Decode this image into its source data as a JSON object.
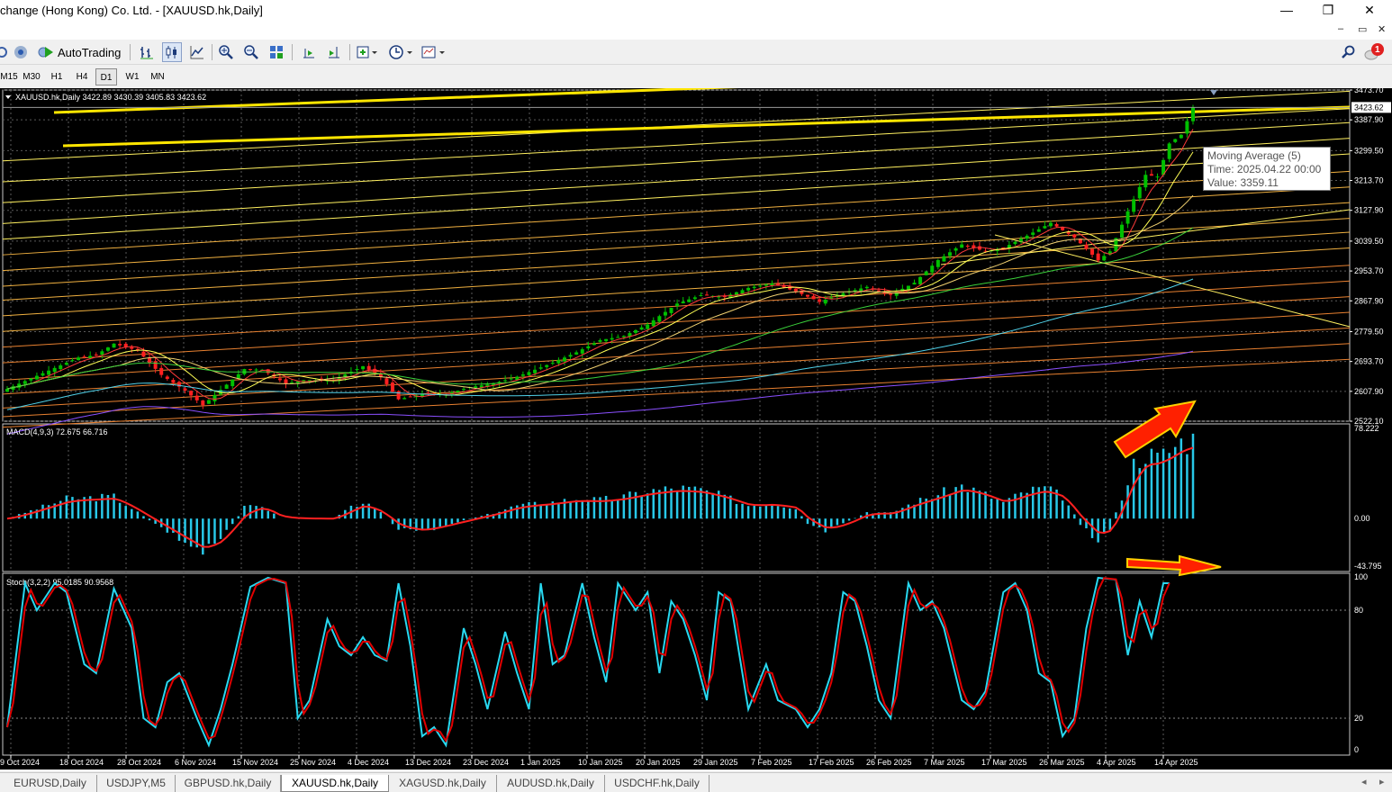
{
  "window": {
    "title": "change (Hong Kong) Co. Ltd. - [XAUUSD.hk,Daily]",
    "minimize": "—",
    "restore": "❐",
    "close": "✕"
  },
  "mdi": {
    "minimize": "–",
    "restore": "▭",
    "close": "✕",
    "alert_count": "1"
  },
  "toolbar": {
    "autotrading": "AutoTrading",
    "icons": [
      "bar-chart-icon",
      "candlestick-icon",
      "line-chart-icon",
      "zoom-in-icon",
      "zoom-out-icon",
      "tile-windows-icon",
      "chart-shift-icon",
      "autoscroll-icon",
      "indicators-icon",
      "periods-icon",
      "templates-icon",
      "search-icon"
    ]
  },
  "timeframes": [
    "M15",
    "M30",
    "H1",
    "H4",
    "D1",
    "W1",
    "MN"
  ],
  "active_timeframe": "D1",
  "chart_header": "XAUUSD.hk,Daily  3422.89 3430.39 3405.83 3423.62",
  "tooltip": {
    "line1": "Moving Average (5)",
    "line2": "Time: 2025.04.22 00:00",
    "line3": "Value: 3359.11"
  },
  "tabs": [
    "EURUSD,Daily",
    "USDJPY,M5",
    "GBPUSD.hk,Daily",
    "XAUUSD.hk,Daily",
    "XAGUSD.hk,Daily",
    "AUDUSD.hk,Daily",
    "USDCHF.hk,Daily"
  ],
  "active_tab": "XAUUSD.hk,Daily",
  "colors": {
    "bull": "#00c000",
    "bear": "#ff2020",
    "macd_hist": "#28c8e8",
    "signal": "#ff2020",
    "stoch_main": "#28d8f0",
    "stoch_signal": "#e00000",
    "trendline": "#ffe600",
    "arrow": "#ff2000"
  },
  "chart_data": [
    {
      "type": "candlestick",
      "symbol": "XAUUSD.hk",
      "timeframe": "Daily",
      "price_axis": [
        "3473.70",
        "3387.90",
        "3299.50",
        "3213.70",
        "3127.90",
        "3039.50",
        "2953.70",
        "2867.90",
        "2779.50",
        "2693.70",
        "2607.90",
        "2522.10"
      ],
      "current_price": "3423.62",
      "ylim": [
        2522.1,
        3473.7
      ],
      "x_labels": [
        "9 Oct 2024",
        "18 Oct 2024",
        "28 Oct 2024",
        "6 Nov 2024",
        "15 Nov 2024",
        "25 Nov 2024",
        "4 Dec 2024",
        "13 Dec 2024",
        "23 Dec 2024",
        "1 Jan 2025",
        "10 Jan 2025",
        "20 Jan 2025",
        "29 Jan 2025",
        "7 Feb 2025",
        "17 Feb 2025",
        "26 Feb 2025",
        "7 Mar 2025",
        "17 Mar 2025",
        "26 Mar 2025",
        "4 Apr 2025",
        "14 Apr 2025"
      ],
      "close_anchors": [
        [
          0,
          2615
        ],
        [
          6,
          2660
        ],
        [
          12,
          2705
        ],
        [
          15,
          2712
        ],
        [
          18,
          2745
        ],
        [
          22,
          2725
        ],
        [
          26,
          2655
        ],
        [
          30,
          2610
        ],
        [
          33,
          2568
        ],
        [
          36,
          2612
        ],
        [
          40,
          2672
        ],
        [
          43,
          2670
        ],
        [
          47,
          2630
        ],
        [
          50,
          2640
        ],
        [
          55,
          2641
        ],
        [
          60,
          2680
        ],
        [
          63,
          2650
        ],
        [
          66,
          2585
        ],
        [
          70,
          2600
        ],
        [
          74,
          2600
        ],
        [
          78,
          2620
        ],
        [
          82,
          2630
        ],
        [
          86,
          2650
        ],
        [
          92,
          2690
        ],
        [
          96,
          2720
        ],
        [
          100,
          2755
        ],
        [
          104,
          2767
        ],
        [
          108,
          2800
        ],
        [
          113,
          2860
        ],
        [
          117,
          2884
        ],
        [
          121,
          2880
        ],
        [
          125,
          2905
        ],
        [
          129,
          2918
        ],
        [
          133,
          2895
        ],
        [
          137,
          2865
        ],
        [
          141,
          2890
        ],
        [
          145,
          2908
        ],
        [
          149,
          2885
        ],
        [
          153,
          2920
        ],
        [
          157,
          2985
        ],
        [
          161,
          3030
        ],
        [
          165,
          3010
        ],
        [
          168,
          3020
        ],
        [
          172,
          3055
        ],
        [
          176,
          3092
        ],
        [
          180,
          3050
        ],
        [
          184,
          2984
        ],
        [
          186,
          3010
        ],
        [
          189,
          3125
        ],
        [
          192,
          3230
        ],
        [
          194,
          3225
        ],
        [
          196,
          3320
        ],
        [
          198,
          3345
        ],
        [
          200,
          3423.62
        ]
      ],
      "moving_averages": [
        {
          "name": "Moving Average (5)",
          "period": 5,
          "color": "#ff3a3a"
        },
        {
          "period": 10,
          "color": "#ffff55"
        },
        {
          "period": 20,
          "color": "#f0d070"
        },
        {
          "period": 50,
          "color": "#3ad03a"
        },
        {
          "period": 100,
          "color": "#4fd0e8"
        },
        {
          "period": 200,
          "color": "#8a4fff"
        }
      ]
    },
    {
      "type": "bar",
      "name": "MACD(4,9,3)",
      "header": "MACD(4,9,3) 72.675 66.716",
      "axis": [
        "78.222",
        "0.00",
        "-43.795"
      ],
      "ylim": [
        -43.795,
        78.222
      ],
      "anchors": [
        [
          0,
          0
        ],
        [
          10,
          18
        ],
        [
          18,
          20
        ],
        [
          25,
          -5
        ],
        [
          30,
          -22
        ],
        [
          33,
          -32
        ],
        [
          36,
          -20
        ],
        [
          40,
          10
        ],
        [
          43,
          12
        ],
        [
          46,
          0
        ],
        [
          55,
          0
        ],
        [
          58,
          10
        ],
        [
          60,
          15
        ],
        [
          63,
          5
        ],
        [
          66,
          -10
        ],
        [
          70,
          -12
        ],
        [
          76,
          -3
        ],
        [
          82,
          5
        ],
        [
          86,
          12
        ],
        [
          92,
          15
        ],
        [
          96,
          18
        ],
        [
          100,
          17
        ],
        [
          104,
          20
        ],
        [
          108,
          25
        ],
        [
          113,
          28
        ],
        [
          117,
          26
        ],
        [
          121,
          20
        ],
        [
          125,
          12
        ],
        [
          129,
          14
        ],
        [
          133,
          10
        ],
        [
          135,
          -5
        ],
        [
          138,
          -12
        ],
        [
          141,
          -5
        ],
        [
          145,
          6
        ],
        [
          149,
          5
        ],
        [
          153,
          15
        ],
        [
          157,
          22
        ],
        [
          161,
          30
        ],
        [
          165,
          22
        ],
        [
          168,
          15
        ],
        [
          172,
          25
        ],
        [
          175,
          28
        ],
        [
          178,
          20
        ],
        [
          181,
          -5
        ],
        [
          184,
          -20
        ],
        [
          186,
          -10
        ],
        [
          188,
          20
        ],
        [
          190,
          50
        ],
        [
          192,
          60
        ],
        [
          194,
          55
        ],
        [
          196,
          62
        ],
        [
          198,
          70
        ],
        [
          200,
          72.675
        ]
      ]
    },
    {
      "type": "line",
      "name": "Stoch(3,2,2)",
      "header": "Stoch(3,2,2) 95.0185 90.9568",
      "axis": [
        "100",
        "80",
        "20",
        "0"
      ],
      "ylim": [
        0,
        100
      ],
      "anchors": [
        [
          0,
          15
        ],
        [
          3,
          95
        ],
        [
          5,
          80
        ],
        [
          8,
          95
        ],
        [
          10,
          90
        ],
        [
          13,
          50
        ],
        [
          15,
          45
        ],
        [
          18,
          92
        ],
        [
          21,
          70
        ],
        [
          23,
          20
        ],
        [
          25,
          15
        ],
        [
          27,
          40
        ],
        [
          29,
          45
        ],
        [
          32,
          20
        ],
        [
          34,
          5
        ],
        [
          36,
          25
        ],
        [
          38,
          50
        ],
        [
          41,
          93
        ],
        [
          44,
          98
        ],
        [
          47,
          95
        ],
        [
          49,
          20
        ],
        [
          51,
          30
        ],
        [
          54,
          75
        ],
        [
          56,
          60
        ],
        [
          58,
          55
        ],
        [
          60,
          65
        ],
        [
          62,
          55
        ],
        [
          64,
          52
        ],
        [
          66,
          95
        ],
        [
          68,
          60
        ],
        [
          70,
          10
        ],
        [
          72,
          15
        ],
        [
          74,
          5
        ],
        [
          77,
          70
        ],
        [
          79,
          50
        ],
        [
          81,
          25
        ],
        [
          84,
          68
        ],
        [
          86,
          45
        ],
        [
          88,
          25
        ],
        [
          90,
          95
        ],
        [
          92,
          50
        ],
        [
          94,
          55
        ],
        [
          97,
          95
        ],
        [
          99,
          65
        ],
        [
          101,
          40
        ],
        [
          103,
          95
        ],
        [
          106,
          80
        ],
        [
          108,
          90
        ],
        [
          110,
          45
        ],
        [
          112,
          85
        ],
        [
          114,
          75
        ],
        [
          116,
          55
        ],
        [
          118,
          30
        ],
        [
          120,
          90
        ],
        [
          122,
          85
        ],
        [
          125,
          25
        ],
        [
          128,
          50
        ],
        [
          130,
          30
        ],
        [
          133,
          25
        ],
        [
          135,
          15
        ],
        [
          137,
          25
        ],
        [
          139,
          45
        ],
        [
          141,
          90
        ],
        [
          143,
          85
        ],
        [
          145,
          60
        ],
        [
          147,
          30
        ],
        [
          149,
          20
        ],
        [
          152,
          95
        ],
        [
          154,
          80
        ],
        [
          156,
          85
        ],
        [
          158,
          70
        ],
        [
          161,
          30
        ],
        [
          163,
          25
        ],
        [
          165,
          35
        ],
        [
          168,
          90
        ],
        [
          170,
          95
        ],
        [
          172,
          80
        ],
        [
          174,
          45
        ],
        [
          176,
          40
        ],
        [
          178,
          10
        ],
        [
          180,
          20
        ],
        [
          182,
          70
        ],
        [
          184,
          98
        ],
        [
          187,
          97
        ],
        [
          189,
          55
        ],
        [
          191,
          85
        ],
        [
          193,
          65
        ],
        [
          195,
          95
        ],
        [
          196,
          95.0185
        ]
      ]
    }
  ]
}
